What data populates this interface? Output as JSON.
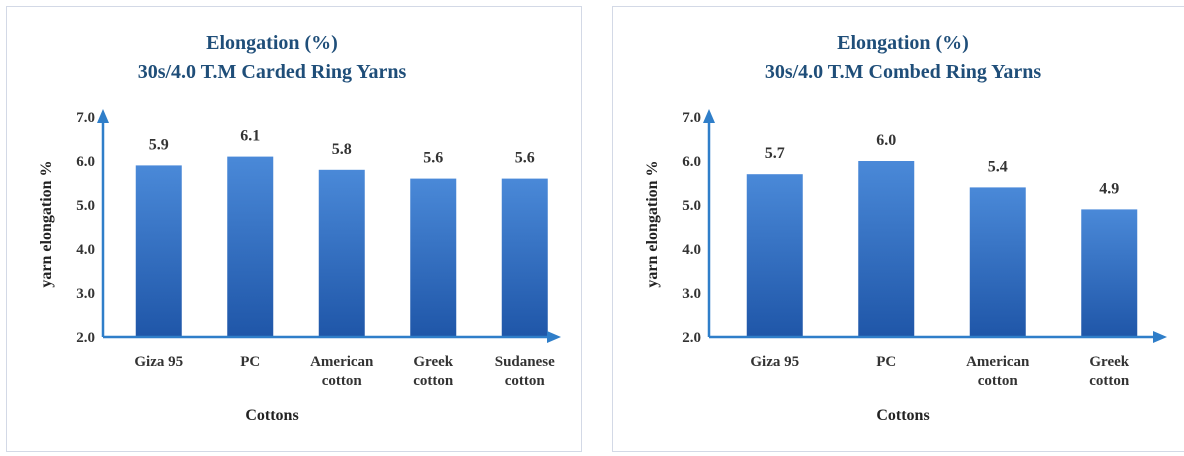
{
  "chart_data": [
    {
      "type": "bar",
      "title": [
        "Elongation  (%)",
        "30s/4.0 T.M Carded Ring Yarns"
      ],
      "categories": [
        [
          "Giza 95"
        ],
        [
          "PC"
        ],
        [
          "American",
          "cotton"
        ],
        [
          "Greek",
          "cotton"
        ],
        [
          "Sudanese",
          "cotton"
        ]
      ],
      "values": [
        5.9,
        6.1,
        5.8,
        5.6,
        5.6
      ],
      "value_labels": [
        "5.9",
        "6.1",
        "5.8",
        "5.6",
        "5.6"
      ],
      "xlabel": "Cottons",
      "ylabel": "yarn elongation %",
      "ylim": [
        2.0,
        7.0
      ],
      "yticks": [
        "2.0",
        "3.0",
        "4.0",
        "5.0",
        "6.0",
        "7.0"
      ],
      "grid": false,
      "bar_color_top": "#4a89d8",
      "bar_color_bottom": "#1f56a8",
      "axis_color": "#2f7ec9"
    },
    {
      "type": "bar",
      "title": [
        "Elongation (%)",
        "30s/4.0 T.M Combed  Ring Yarns"
      ],
      "categories": [
        [
          "Giza 95"
        ],
        [
          "PC"
        ],
        [
          "American",
          "cotton"
        ],
        [
          "Greek",
          "cotton"
        ]
      ],
      "values": [
        5.7,
        6.0,
        5.4,
        4.9
      ],
      "value_labels": [
        "5.7",
        "6.0",
        "5.4",
        "4.9"
      ],
      "xlabel": "Cottons",
      "ylabel": "yarn elongation %",
      "ylim": [
        2.0,
        7.0
      ],
      "yticks": [
        "2.0",
        "3.0",
        "4.0",
        "5.0",
        "6.0",
        "7.0"
      ],
      "grid": false,
      "bar_color_top": "#4a89d8",
      "bar_color_bottom": "#1f56a8",
      "axis_color": "#2f7ec9"
    }
  ]
}
